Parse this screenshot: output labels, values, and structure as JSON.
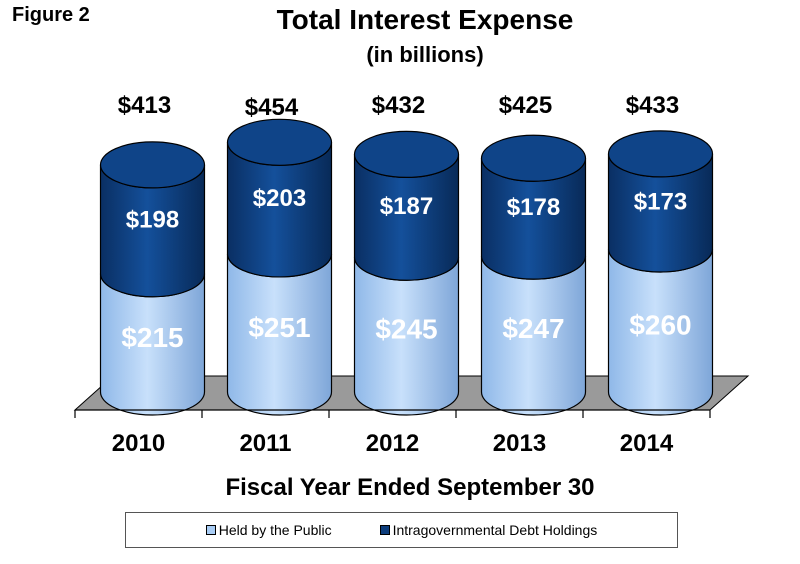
{
  "figure_label": "Figure 2",
  "chart_data": {
    "type": "bar",
    "stacked": true,
    "style": "3d-cylinder",
    "title": "Total Interest Expense",
    "subtitle": "(in billions)",
    "xlabel": "Fiscal Year Ended September 30",
    "categories": [
      "2010",
      "2011",
      "2012",
      "2013",
      "2014"
    ],
    "totals": [
      413,
      454,
      432,
      425,
      433
    ],
    "total_labels": [
      "$413",
      "$454",
      "$432",
      "$425",
      "$433"
    ],
    "series": [
      {
        "name": "Held by the Public",
        "values": [
          215,
          251,
          245,
          247,
          260
        ],
        "labels": [
          "$215",
          "$251",
          "$245",
          "$247",
          "$260"
        ],
        "color": "#a9cdf5"
      },
      {
        "name": "Intragovernmental Debt Holdings",
        "values": [
          198,
          203,
          187,
          178,
          173
        ],
        "labels": [
          "$198",
          "$203",
          "$187",
          "$178",
          "$173"
        ],
        "color": "#0d3d7c"
      }
    ],
    "legend_position": "bottom",
    "grid": false
  }
}
